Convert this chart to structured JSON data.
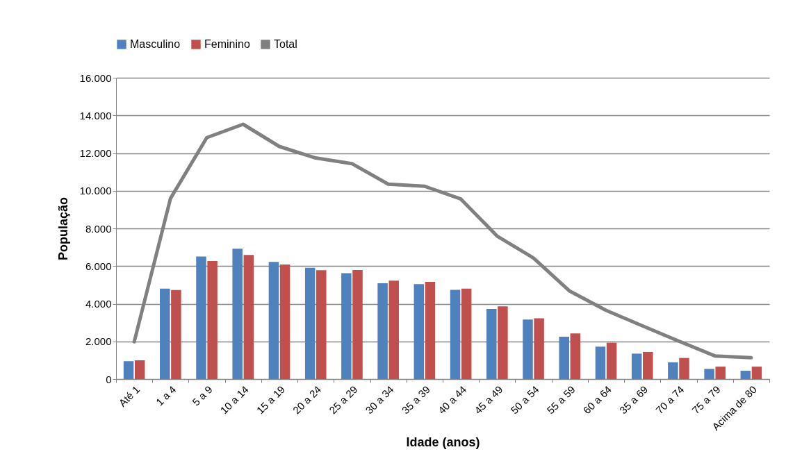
{
  "chart_data": {
    "type": "bar",
    "xlabel": "Idade (anos)",
    "ylabel": "População",
    "categories": [
      "Até 1",
      "1 a 4",
      "5 a 9",
      "10 a 14",
      "15 a 19",
      "20 a 24",
      "25 a 29",
      "30 a 34",
      "35 a 39",
      "40 a 44",
      "45 a 49",
      "50 a 54",
      "55 a 59",
      "60 a 64",
      "35 a 69",
      "70 a 74",
      "75 a 79",
      "Acima de 80"
    ],
    "series": [
      {
        "name": "Masculino",
        "color": "#4f81bd",
        "values": [
          950,
          4800,
          6510,
          6920,
          6220,
          5910,
          5620,
          5090,
          5040,
          4740,
          3720,
          3160,
          2250,
          1720,
          1350,
          890,
          540,
          440
        ]
      },
      {
        "name": "Feminino",
        "color": "#c0504d",
        "values": [
          1000,
          4730,
          6270,
          6590,
          6080,
          5780,
          5790,
          5230,
          5160,
          4800,
          3860,
          3230,
          2420,
          1930,
          1440,
          1120,
          660,
          660
        ]
      },
      {
        "name": "Total",
        "type": "line",
        "color": "#808080",
        "values": [
          1980,
          9590,
          12820,
          13530,
          12350,
          11740,
          11440,
          10350,
          10240,
          9560,
          7590,
          6430,
          4670,
          3650,
          2830,
          2020,
          1230,
          1130
        ]
      }
    ],
    "ylim": [
      0,
      16000
    ],
    "yticks": [
      {
        "value": 0,
        "label": "0"
      },
      {
        "value": 2000,
        "label": "2.000"
      },
      {
        "value": 4000,
        "label": "4.000"
      },
      {
        "value": 6000,
        "label": "6.000"
      },
      {
        "value": 8000,
        "label": "8.000"
      },
      {
        "value": 10000,
        "label": "10.000"
      },
      {
        "value": 12000,
        "label": "12.000"
      },
      {
        "value": 14000,
        "label": "14.000"
      },
      {
        "value": 16000,
        "label": "16.000"
      }
    ],
    "grid": "y",
    "legend": "top"
  }
}
